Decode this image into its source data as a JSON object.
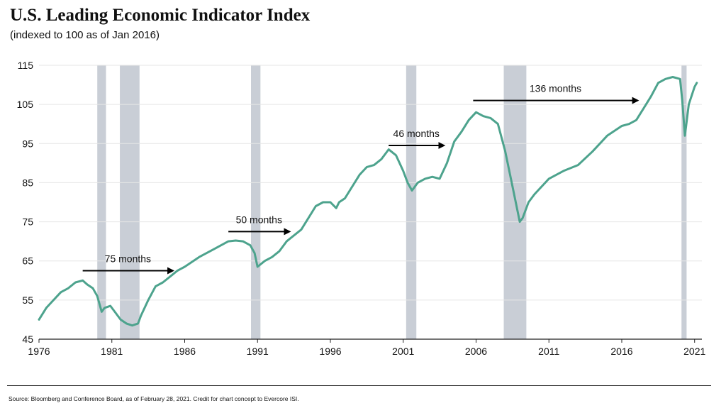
{
  "chart_data": {
    "type": "line",
    "title": "U.S. Leading Economic Indicator Index",
    "subtitle": "(indexed to 100 as of Jan 2016)",
    "xlabel": "",
    "ylabel": "",
    "xlim": [
      1976,
      2021.5
    ],
    "ylim": [
      45,
      115
    ],
    "x_ticks": [
      1976,
      1981,
      1986,
      1991,
      1996,
      2001,
      2006,
      2011,
      2016,
      2021
    ],
    "y_ticks": [
      45,
      55,
      65,
      75,
      85,
      95,
      105,
      115
    ],
    "grid": true,
    "series": [
      {
        "color": "#4da38d",
        "x": [
          1976.0,
          1976.5,
          1977.0,
          1977.5,
          1978.0,
          1978.5,
          1979.0,
          1979.3,
          1979.7,
          1980.0,
          1980.3,
          1980.5,
          1980.9,
          1981.2,
          1981.6,
          1982.0,
          1982.4,
          1982.8,
          1983.0,
          1983.5,
          1984.0,
          1984.5,
          1985.0,
          1985.5,
          1986.0,
          1987.0,
          1988.0,
          1989.0,
          1989.5,
          1990.0,
          1990.5,
          1990.8,
          1991.0,
          1991.5,
          1992.0,
          1992.5,
          1993.0,
          1994.0,
          1995.0,
          1995.5,
          1996.0,
          1996.4,
          1996.6,
          1997.0,
          1998.0,
          1998.5,
          1999.0,
          1999.5,
          2000.0,
          2000.5,
          2001.0,
          2001.3,
          2001.6,
          2002.0,
          2002.5,
          2003.0,
          2003.5,
          2004.0,
          2004.5,
          2005.0,
          2005.5,
          2006.0,
          2006.5,
          2007.0,
          2007.5,
          2008.0,
          2008.5,
          2009.0,
          2009.2,
          2009.6,
          2010.0,
          2011.0,
          2012.0,
          2013.0,
          2014.0,
          2015.0,
          2016.0,
          2016.5,
          2017.0,
          2017.5,
          2018.0,
          2018.5,
          2019.0,
          2019.5,
          2020.0,
          2020.15,
          2020.33,
          2020.6,
          2021.0,
          2021.15
        ],
        "y": [
          50,
          53,
          55,
          57,
          58,
          59.5,
          60,
          59,
          58,
          56,
          52,
          53,
          53.5,
          52,
          50,
          49,
          48.5,
          49,
          51,
          55,
          58.5,
          59.5,
          61,
          62.5,
          63.5,
          66,
          68,
          70,
          70.2,
          70,
          69,
          67,
          63.5,
          65,
          66,
          67.5,
          70,
          73,
          79,
          80,
          80,
          78.5,
          80,
          81,
          87,
          89,
          89.5,
          91,
          93.5,
          92,
          88,
          85,
          83,
          85,
          86,
          86.5,
          86,
          90,
          95.5,
          98,
          101,
          103,
          102,
          101.5,
          100,
          93,
          84,
          75,
          76,
          80,
          82,
          86,
          88,
          89.5,
          93,
          97,
          99.5,
          100,
          101,
          104,
          107,
          110.5,
          111.5,
          112,
          111.5,
          106,
          97,
          105,
          109.5,
          110.5
        ]
      }
    ],
    "recessions": [
      {
        "start": 1980.0,
        "end": 1980.6
      },
      {
        "start": 1981.55,
        "end": 1982.9
      },
      {
        "start": 1990.55,
        "end": 1991.2
      },
      {
        "start": 2001.2,
        "end": 2001.9
      },
      {
        "start": 2007.9,
        "end": 2009.45
      },
      {
        "start": 2020.1,
        "end": 2020.45
      }
    ],
    "annotations": [
      {
        "text": "75 months",
        "x_start": 1979.0,
        "x_end": 1985.2,
        "y": 62.5
      },
      {
        "text": "50 months",
        "x_start": 1989.0,
        "x_end": 1993.2,
        "y": 72.5
      },
      {
        "text": "46 months",
        "x_start": 2000.0,
        "x_end": 2003.8,
        "y": 94.5
      },
      {
        "text": "136 months",
        "x_start": 2005.8,
        "x_end": 2017.1,
        "y": 106
      }
    ]
  },
  "source": "Source: Bloomberg and Conference Board, as of February 28, 2021. Credit for chart concept to Evercore ISI.",
  "colors": {
    "line": "#4da38d",
    "recession": "#c9ced6",
    "grid": "#e6e6e6",
    "axis": "#222222"
  }
}
